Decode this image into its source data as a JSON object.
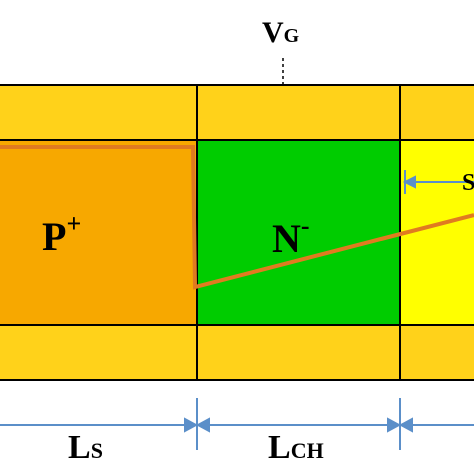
{
  "labels": {
    "gate": {
      "text": "V",
      "sub": "G"
    },
    "source": {
      "text": "P",
      "sup": "+"
    },
    "channel": {
      "text": "N",
      "sup": "-"
    },
    "source_length": {
      "text": "L",
      "sub": "S"
    },
    "channel_length": {
      "text": "L",
      "sub": "CH"
    },
    "spacer": "S"
  }
}
